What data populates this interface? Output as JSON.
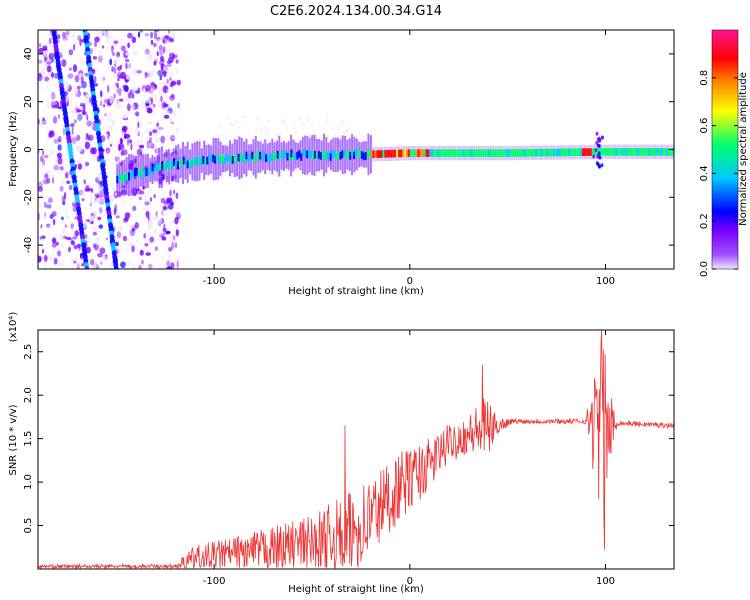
{
  "title": "C2E6.2024.134.00.34.G14",
  "chart_data": [
    {
      "type": "heatmap",
      "xlabel": "Height of straight line (km)",
      "ylabel": "Frequency (Hz)",
      "xlim": [
        -190,
        135
      ],
      "ylim": [
        -50,
        50
      ],
      "x_ticks": [
        -100,
        0,
        100
      ],
      "y_ticks": [
        -40,
        -20,
        0,
        20,
        40
      ],
      "colorbar": {
        "label": "Normalized spectral amplitude",
        "range": [
          0.0,
          1.0
        ],
        "ticks": [
          "0.0",
          "0.2",
          "0.4",
          "0.6",
          "0.8"
        ],
        "tick_values": [
          0.0,
          0.2,
          0.4,
          0.6,
          0.8
        ],
        "colors": [
          "#f2e6ff",
          "#7a00ff",
          "#0000ff",
          "#00c8ff",
          "#00ff6a",
          "#ffff00",
          "#ff8800",
          "#ff0000",
          "#ff1493"
        ]
      },
      "features": {
        "main_band": [
          {
            "x": -150,
            "f": -12
          },
          {
            "x": -120,
            "f": -6
          },
          {
            "x": -100,
            "f": -4
          },
          {
            "x": -60,
            "f": -2.5
          },
          {
            "x": -20,
            "f": -2
          },
          {
            "x": 0,
            "f": -1.5
          },
          {
            "x": 50,
            "f": -1.5
          },
          {
            "x": 100,
            "f": -1
          },
          {
            "x": 135,
            "f": -1
          }
        ],
        "diagonal_streaks": [
          {
            "from": {
              "x": -182,
              "f": 50
            },
            "to": {
              "x": -165,
              "f": -50
            }
          },
          {
            "from": {
              "x": -166,
              "f": 50
            },
            "to": {
              "x": -150,
              "f": -50
            }
          }
        ],
        "noisy_region": [
          -190,
          -118
        ]
      }
    },
    {
      "type": "line",
      "xlabel": "Height of straight line (km)",
      "ylabel": "SNR (10 * v/v)",
      "y_multiplier": "(x10⁴)",
      "xlim": [
        -190,
        135
      ],
      "ylim": [
        0,
        2.75
      ],
      "x_ticks": [
        -100,
        0,
        100
      ],
      "y_ticks": [
        "0.5",
        "1.0",
        "1.5",
        "2.0",
        "2.5"
      ],
      "y_tick_values": [
        0.5,
        1.0,
        1.5,
        2.0,
        2.5
      ],
      "color": "#ee3333",
      "envelope": [
        {
          "x": -190,
          "base": 0.03,
          "spread": 0.04
        },
        {
          "x": -120,
          "base": 0.03,
          "spread": 0.05
        },
        {
          "x": -110,
          "base": 0.12,
          "spread": 0.3
        },
        {
          "x": -80,
          "base": 0.2,
          "spread": 0.45
        },
        {
          "x": -50,
          "base": 0.3,
          "spread": 0.65
        },
        {
          "x": -30,
          "base": 0.4,
          "spread": 1.0
        },
        {
          "x": -20,
          "base": 0.6,
          "spread": 1.0
        },
        {
          "x": -5,
          "base": 0.95,
          "spread": 0.8
        },
        {
          "x": 10,
          "base": 1.2,
          "spread": 0.6
        },
        {
          "x": 20,
          "base": 1.45,
          "spread": 0.45
        },
        {
          "x": 30,
          "base": 1.55,
          "spread": 0.45
        },
        {
          "x": 38,
          "base": 1.6,
          "spread": 0.8
        },
        {
          "x": 45,
          "base": 1.65,
          "spread": 0.2
        },
        {
          "x": 52,
          "base": 1.7,
          "spread": 0.06
        },
        {
          "x": 90,
          "base": 1.7,
          "spread": 0.06
        },
        {
          "x": 93,
          "base": 1.7,
          "spread": 1.0
        },
        {
          "x": 99,
          "base": 1.55,
          "spread": 2.3
        },
        {
          "x": 102,
          "base": 1.6,
          "spread": 1.0
        },
        {
          "x": 106,
          "base": 1.68,
          "spread": 0.06
        },
        {
          "x": 135,
          "base": 1.65,
          "spread": 0.06
        }
      ],
      "peaks": [
        {
          "x": -33,
          "y": 1.65
        },
        {
          "x": 37,
          "y": 2.35
        },
        {
          "x": 98,
          "y": 2.75
        },
        {
          "x": 99.5,
          "y": 0.22
        }
      ]
    }
  ]
}
